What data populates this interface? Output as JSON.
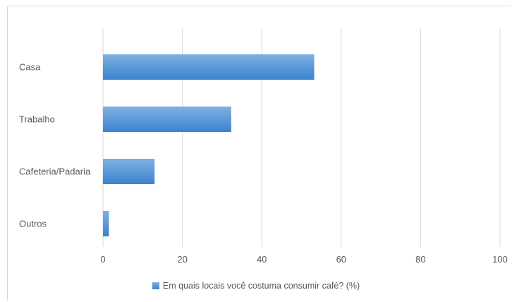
{
  "chart_data": {
    "type": "bar",
    "orientation": "horizontal",
    "categories": [
      "Casa",
      "Trabalho",
      "Cafeteria/Padaria",
      "Outros"
    ],
    "series": [
      {
        "name": "Em quais locais você costuma consumir café? (%)",
        "values": [
          53.2,
          32.3,
          13.0,
          1.5
        ]
      }
    ],
    "xlim": [
      0,
      100
    ],
    "xticks": [
      0,
      20,
      40,
      60,
      80,
      100
    ],
    "grid": true,
    "legend": "bottom",
    "bar_color": "#4a8fd6",
    "bar_gradient": [
      "#7fb1e2",
      "#3c82cf"
    ],
    "grid_color": "#d9d9d9"
  }
}
